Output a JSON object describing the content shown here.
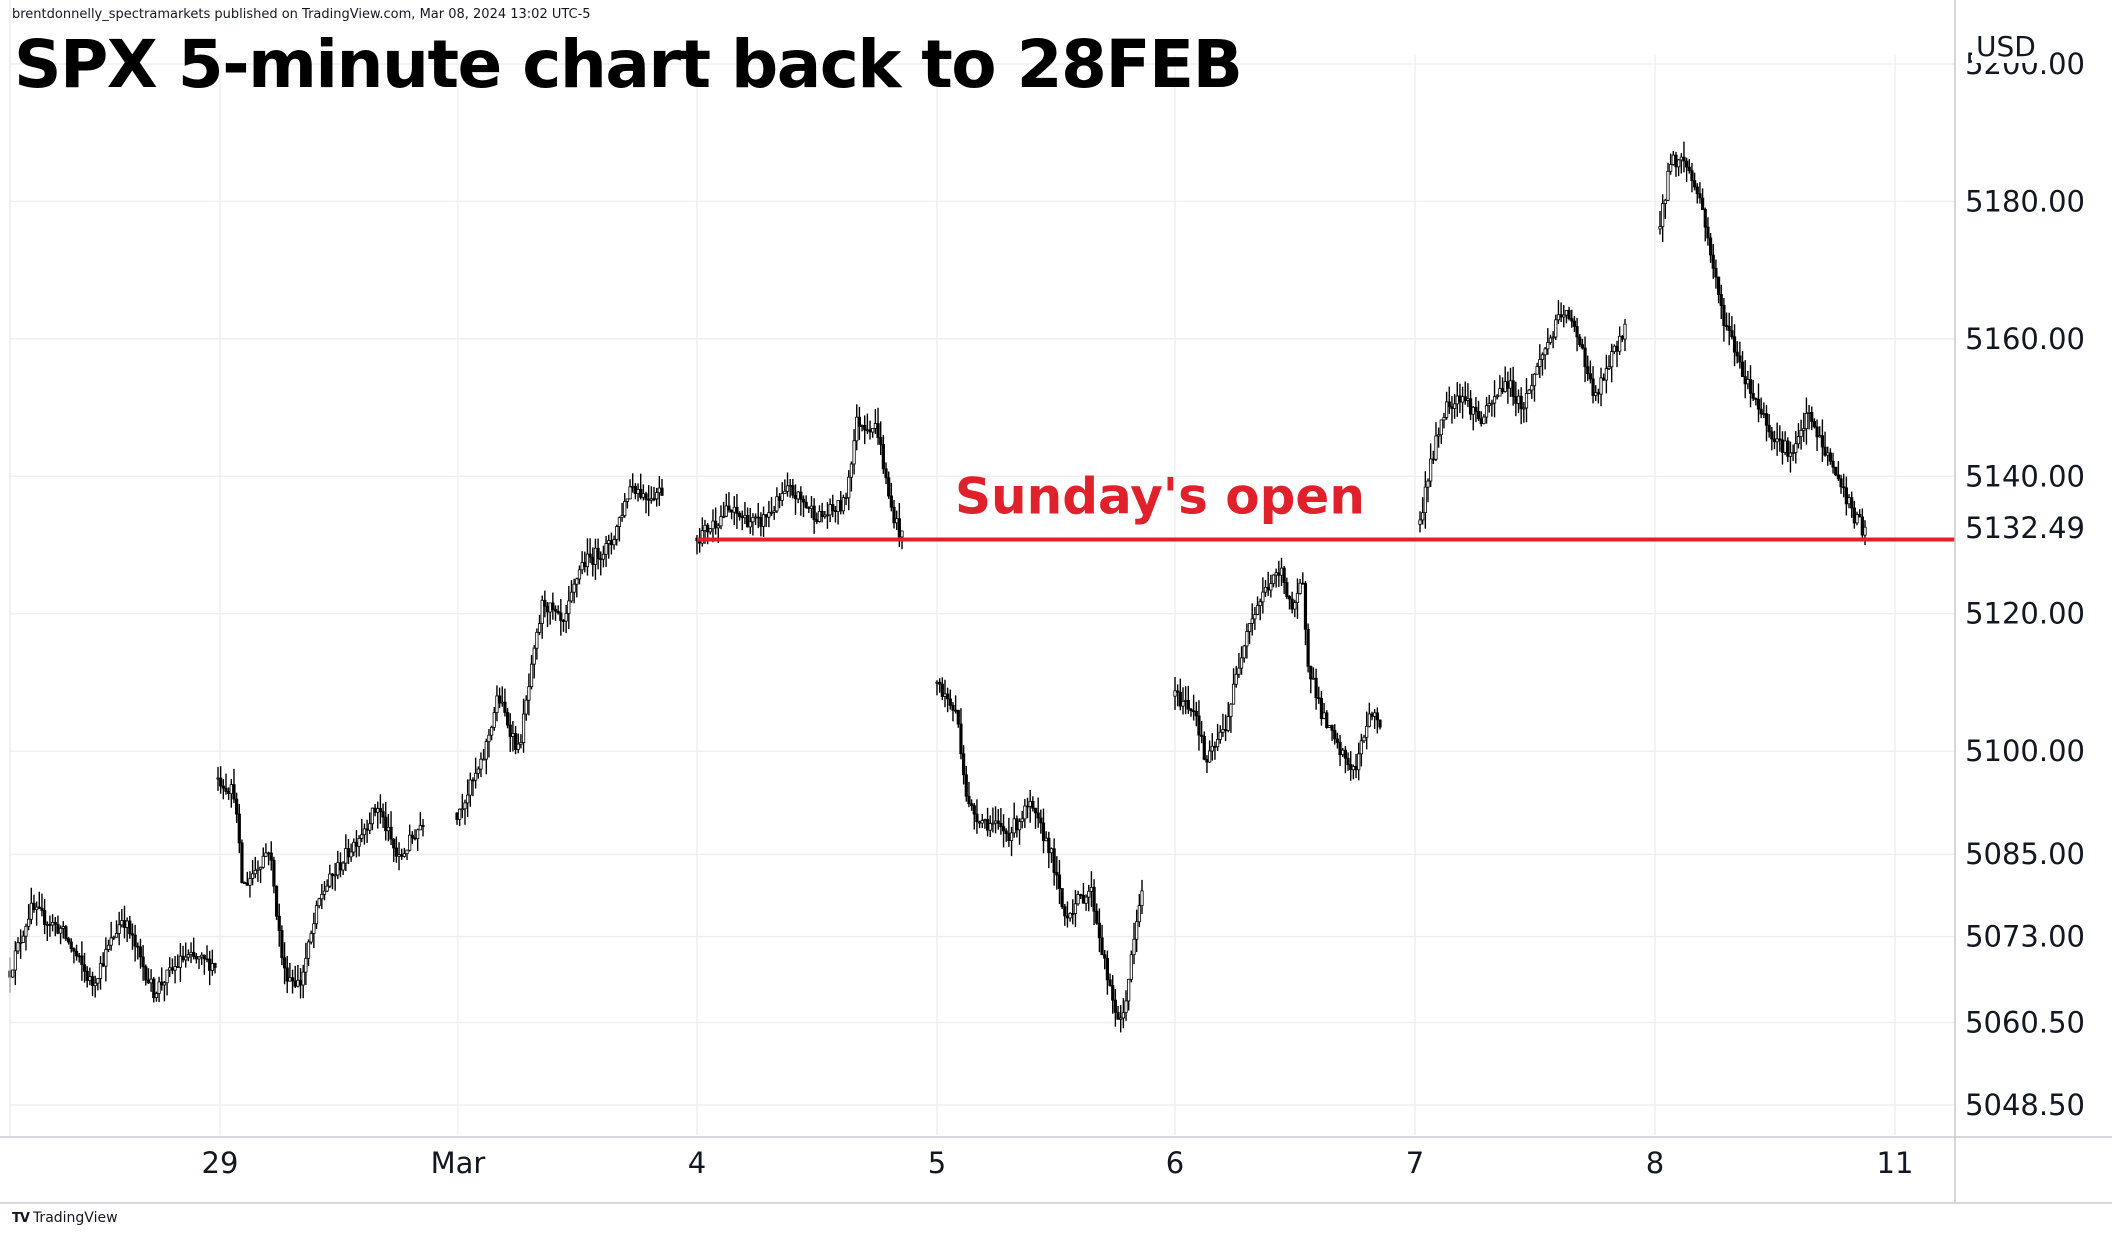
{
  "header": {
    "publisher_line": "brentdonnelly_spectramarkets published on TradingView.com, Mar 08, 2024 13:02 UTC-5",
    "title": "SPX 5-minute chart back to 28FEB"
  },
  "footer": {
    "brand": "TradingView",
    "brand_mark": "TV"
  },
  "chart_data": {
    "type": "candlestick",
    "title": "SPX 5-minute chart back to 28FEB",
    "currency": "USD",
    "ylim": [
      5045,
      5202
    ],
    "y_ticks": [
      "5048.50",
      "5060.50",
      "5073.00",
      "5085.00",
      "5100.00",
      "5120.00",
      "5140.00",
      "5160.00",
      "5180.00",
      "5200.00"
    ],
    "last_price_label": "5132.49",
    "x_ticks": [
      {
        "label": "29",
        "date": "2024-02-29"
      },
      {
        "label": "Mar",
        "date": "2024-03-01"
      },
      {
        "label": "4",
        "date": "2024-03-04"
      },
      {
        "label": "5",
        "date": "2024-03-05"
      },
      {
        "label": "6",
        "date": "2024-03-06"
      },
      {
        "label": "7",
        "date": "2024-03-07"
      },
      {
        "label": "8",
        "date": "2024-03-08"
      },
      {
        "label": "11",
        "date": "2024-03-11"
      }
    ],
    "xlim": [
      "2024-02-28",
      "2024-03-11"
    ],
    "sessions": [
      {
        "date": "2024-02-28",
        "points": [
          [
            0,
            5068
          ],
          [
            0.1,
            5077
          ],
          [
            0.25,
            5074
          ],
          [
            0.4,
            5066
          ],
          [
            0.55,
            5076
          ],
          [
            0.7,
            5065
          ],
          [
            0.85,
            5070
          ],
          [
            1,
            5069
          ]
        ]
      },
      {
        "date": "2024-02-29",
        "points": [
          [
            0,
            5096
          ],
          [
            0.08,
            5094
          ],
          [
            0.12,
            5080
          ],
          [
            0.25,
            5086
          ],
          [
            0.32,
            5068
          ],
          [
            0.4,
            5066
          ],
          [
            0.5,
            5079
          ],
          [
            0.65,
            5086
          ],
          [
            0.78,
            5092
          ],
          [
            0.88,
            5084
          ],
          [
            1,
            5090
          ]
        ]
      },
      {
        "date": "2024-03-01",
        "points": [
          [
            0,
            5091
          ],
          [
            0.12,
            5098
          ],
          [
            0.2,
            5108
          ],
          [
            0.3,
            5100
          ],
          [
            0.42,
            5122
          ],
          [
            0.52,
            5118
          ],
          [
            0.6,
            5127
          ],
          [
            0.75,
            5130
          ],
          [
            0.85,
            5139
          ],
          [
            0.92,
            5137
          ],
          [
            1,
            5138
          ]
        ]
      },
      {
        "date": "2024-03-04",
        "points": [
          [
            0,
            5131
          ],
          [
            0.15,
            5135
          ],
          [
            0.3,
            5133
          ],
          [
            0.45,
            5138
          ],
          [
            0.6,
            5134
          ],
          [
            0.72,
            5136
          ],
          [
            0.78,
            5148
          ],
          [
            0.88,
            5147
          ],
          [
            0.94,
            5136
          ],
          [
            1,
            5131
          ]
        ]
      },
      {
        "date": "2024-03-05",
        "points": [
          [
            0,
            5110
          ],
          [
            0.1,
            5105
          ],
          [
            0.15,
            5092
          ],
          [
            0.22,
            5090
          ],
          [
            0.35,
            5088
          ],
          [
            0.45,
            5092
          ],
          [
            0.55,
            5086
          ],
          [
            0.62,
            5076
          ],
          [
            0.75,
            5080
          ],
          [
            0.85,
            5064
          ],
          [
            0.9,
            5060
          ],
          [
            0.95,
            5070
          ],
          [
            1,
            5080
          ]
        ]
      },
      {
        "date": "2024-03-06",
        "points": [
          [
            0,
            5108
          ],
          [
            0.1,
            5106
          ],
          [
            0.15,
            5098
          ],
          [
            0.25,
            5104
          ],
          [
            0.35,
            5118
          ],
          [
            0.45,
            5124
          ],
          [
            0.52,
            5126
          ],
          [
            0.58,
            5120
          ],
          [
            0.62,
            5125
          ],
          [
            0.65,
            5113
          ],
          [
            0.72,
            5105
          ],
          [
            0.8,
            5100
          ],
          [
            0.88,
            5097
          ],
          [
            0.95,
            5106
          ],
          [
            1,
            5104
          ]
        ]
      },
      {
        "date": "2024-03-07",
        "points": [
          [
            0,
            5133
          ],
          [
            0.03,
            5139
          ],
          [
            0.12,
            5150
          ],
          [
            0.2,
            5152
          ],
          [
            0.3,
            5148
          ],
          [
            0.42,
            5154
          ],
          [
            0.5,
            5150
          ],
          [
            0.6,
            5158
          ],
          [
            0.7,
            5164
          ],
          [
            0.78,
            5160
          ],
          [
            0.85,
            5151
          ],
          [
            0.92,
            5156
          ],
          [
            1,
            5162
          ]
        ]
      },
      {
        "date": "2024-03-08",
        "points": [
          [
            0,
            5176
          ],
          [
            0.05,
            5186
          ],
          [
            0.12,
            5186
          ],
          [
            0.2,
            5180
          ],
          [
            0.3,
            5164
          ],
          [
            0.42,
            5154
          ],
          [
            0.55,
            5146
          ],
          [
            0.65,
            5143
          ],
          [
            0.72,
            5149
          ],
          [
            0.8,
            5144
          ],
          [
            0.88,
            5139
          ],
          [
            0.95,
            5134
          ],
          [
            1,
            5132
          ]
        ]
      }
    ],
    "reference_line": {
      "value": 5130.8,
      "label": "Sunday's open",
      "color": "#e0202b",
      "from": "2024-03-04",
      "to": "2024-03-11"
    }
  }
}
